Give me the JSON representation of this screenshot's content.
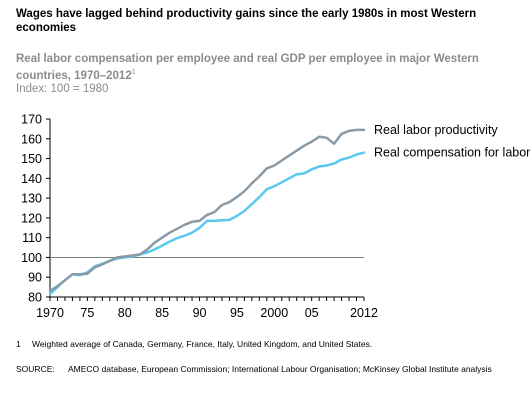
{
  "title": "Wages have lagged behind productivity gains since the early 1980s in most Western economies",
  "subtitle": "Real labor compensation per employee and real GDP per employee in major Western countries, 1970–2012",
  "subtitle_footnote_marker": "1",
  "index_note": "Index: 100 = 1980",
  "footnote": {
    "number": "1",
    "text": "Weighted average of Canada, Germany, France, Italy, United Kingdom, and United States."
  },
  "source": {
    "label": "SOURCE:",
    "text": "AMECO database, European Commission; International Labour Organisation; McKinsey Global Institute analysis"
  },
  "colors": {
    "productivity": "#8a9ba8",
    "compensation": "#5bc8ee",
    "reference_line": "#7f7f7f",
    "axis": "#000000"
  },
  "chart_data": {
    "type": "line",
    "title": "",
    "xlabel": "",
    "ylabel": "",
    "xlim": [
      1970,
      2012
    ],
    "ylim": [
      80,
      170
    ],
    "y_ticks": [
      80,
      90,
      100,
      110,
      120,
      130,
      140,
      150,
      160,
      170
    ],
    "x_ticks": [
      {
        "value": 1970,
        "label": "1970"
      },
      {
        "value": 1975,
        "label": "75"
      },
      {
        "value": 1980,
        "label": "80"
      },
      {
        "value": 1985,
        "label": "85"
      },
      {
        "value": 1990,
        "label": "90"
      },
      {
        "value": 1995,
        "label": "95"
      },
      {
        "value": 2000,
        "label": "2000"
      },
      {
        "value": 2005,
        "label": "05"
      },
      {
        "value": 2012,
        "label": "2012"
      }
    ],
    "reference_line": 100,
    "grid": false,
    "legend": "direct labels at right end of lines",
    "x": [
      1970,
      1971,
      1972,
      1973,
      1974,
      1975,
      1976,
      1977,
      1978,
      1979,
      1980,
      1981,
      1982,
      1983,
      1984,
      1985,
      1986,
      1987,
      1988,
      1989,
      1990,
      1991,
      1992,
      1993,
      1994,
      1995,
      1996,
      1997,
      1998,
      1999,
      2000,
      2001,
      2002,
      2003,
      2004,
      2005,
      2006,
      2007,
      2008,
      2009,
      2010,
      2011,
      2012
    ],
    "series": [
      {
        "name": "Real labor productivity",
        "values": [
          83,
          85.5,
          88.5,
          91.5,
          91.5,
          91.8,
          95,
          96.5,
          98.3,
          100,
          100.5,
          101,
          101.5,
          104,
          107.5,
          110,
          112.5,
          114.5,
          116.5,
          118,
          118.5,
          121.5,
          123,
          126.5,
          128,
          130.5,
          133.5,
          137.5,
          141,
          145,
          146.5,
          149,
          151.5,
          154,
          156.5,
          158.5,
          161,
          160.5,
          157.5,
          162.5,
          164,
          164.5,
          164.5
        ]
      },
      {
        "name": "Real compensation for labor",
        "values": [
          81.5,
          85,
          88.5,
          91.5,
          91,
          92.5,
          95.5,
          96.8,
          98.3,
          99.5,
          100,
          100.5,
          101.5,
          102.5,
          104,
          106,
          108,
          109.8,
          111,
          112.5,
          115,
          118.5,
          118.5,
          118.8,
          119,
          121,
          123.5,
          127,
          130.5,
          134.5,
          136,
          138,
          140,
          142,
          142.5,
          144.5,
          146,
          146.5,
          147.5,
          149.5,
          150.5,
          152,
          153
        ]
      }
    ]
  }
}
